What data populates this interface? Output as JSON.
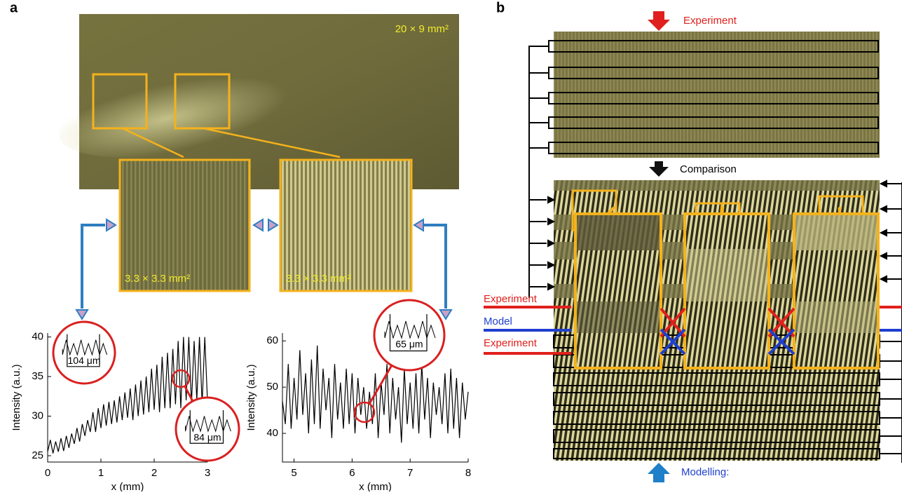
{
  "panel_a": {
    "label": "a",
    "image_scale": "20 × 9 mm²",
    "zoom_labels": [
      "3.3 × 3.3 mm²",
      "3.3 × 3.3 mm²"
    ]
  },
  "panel_b": {
    "label": "b",
    "top_arrow": "Experiment",
    "middle_arrow": "Comparison",
    "bottom_arrow": "Modelling:",
    "side_labels": [
      "Experiment",
      "Model",
      "Experiment"
    ]
  },
  "chart_data": [
    {
      "type": "line",
      "xlabel": "x (mm)",
      "ylabel": "Intensity (a.u.)",
      "xlim": [
        0,
        3
      ],
      "xticks": [
        0,
        1,
        2,
        3
      ],
      "ylim": [
        24.2,
        40.5
      ],
      "yticks": [
        25,
        30,
        35,
        40
      ],
      "annotations": [
        "104 μm",
        "84 μm"
      ],
      "x": [
        0,
        0.05,
        0.1,
        0.15,
        0.2,
        0.25,
        0.3,
        0.35,
        0.4,
        0.45,
        0.5,
        0.55,
        0.6,
        0.65,
        0.7,
        0.75,
        0.8,
        0.85,
        0.9,
        0.95,
        1,
        1.05,
        1.1,
        1.15,
        1.2,
        1.25,
        1.3,
        1.35,
        1.4,
        1.45,
        1.5,
        1.55,
        1.6,
        1.65,
        1.7,
        1.75,
        1.8,
        1.85,
        1.9,
        1.95,
        2,
        2.05,
        2.1,
        2.15,
        2.2,
        2.25,
        2.3,
        2.35,
        2.4,
        2.45,
        2.5,
        2.55,
        2.6,
        2.65,
        2.7,
        2.75,
        2.8,
        2.85,
        2.9,
        2.95,
        3
      ],
      "series": [
        {
          "color": "#000000",
          "values": [
            25.5,
            27,
            25.3,
            26.8,
            25.5,
            27.2,
            25.6,
            27.5,
            26,
            27.8,
            26.5,
            28.5,
            26.8,
            29,
            27.5,
            29.5,
            28,
            30.5,
            28,
            31,
            28.5,
            31.5,
            28.8,
            31.8,
            29,
            32,
            29.2,
            32.5,
            29.5,
            33,
            29.8,
            33.5,
            29.5,
            34,
            30,
            34.5,
            30.2,
            35,
            30.5,
            36,
            30.8,
            36.5,
            30.5,
            37.5,
            31,
            38,
            31,
            38.5,
            31.5,
            39.5,
            31,
            40,
            32,
            40,
            31.5,
            39.5,
            32,
            40,
            31.5,
            40,
            32
          ]
        }
      ]
    },
    {
      "type": "line",
      "xlabel": "x (mm)",
      "ylabel": "Intensity (a.u.)",
      "xlim": [
        4.8,
        8
      ],
      "xticks": [
        5,
        6,
        7,
        8
      ],
      "ylim": [
        33.8,
        61.7
      ],
      "yticks": [
        40,
        50,
        60
      ],
      "annotations": [
        "65 μm"
      ],
      "x": [
        4.8,
        4.85,
        4.9,
        4.95,
        5,
        5.05,
        5.1,
        5.15,
        5.2,
        5.25,
        5.3,
        5.35,
        5.4,
        5.45,
        5.5,
        5.55,
        5.6,
        5.65,
        5.7,
        5.75,
        5.8,
        5.85,
        5.9,
        5.95,
        6,
        6.05,
        6.1,
        6.15,
        6.2,
        6.25,
        6.3,
        6.35,
        6.4,
        6.45,
        6.5,
        6.55,
        6.6,
        6.65,
        6.7,
        6.75,
        6.8,
        6.85,
        6.9,
        6.95,
        7,
        7.05,
        7.1,
        7.15,
        7.2,
        7.25,
        7.3,
        7.35,
        7.4,
        7.45,
        7.5,
        7.55,
        7.6,
        7.65,
        7.7,
        7.75,
        7.8,
        7.85,
        7.9,
        7.95,
        8
      ],
      "series": [
        {
          "color": "#000000",
          "values": [
            47,
            42,
            55,
            41,
            52,
            43,
            58,
            44,
            53,
            40,
            56,
            42,
            59,
            41,
            54,
            45,
            52,
            39,
            55,
            43,
            51,
            41,
            54,
            42,
            53,
            40,
            52,
            44,
            50,
            41,
            49,
            42,
            53,
            39,
            51,
            44,
            55,
            40,
            52,
            43,
            50,
            38,
            54,
            42,
            51,
            41,
            53,
            40,
            55,
            43,
            52,
            39,
            51,
            44,
            50,
            42,
            53,
            40,
            54,
            41,
            52,
            39,
            51,
            43,
            49
          ]
        }
      ]
    }
  ]
}
